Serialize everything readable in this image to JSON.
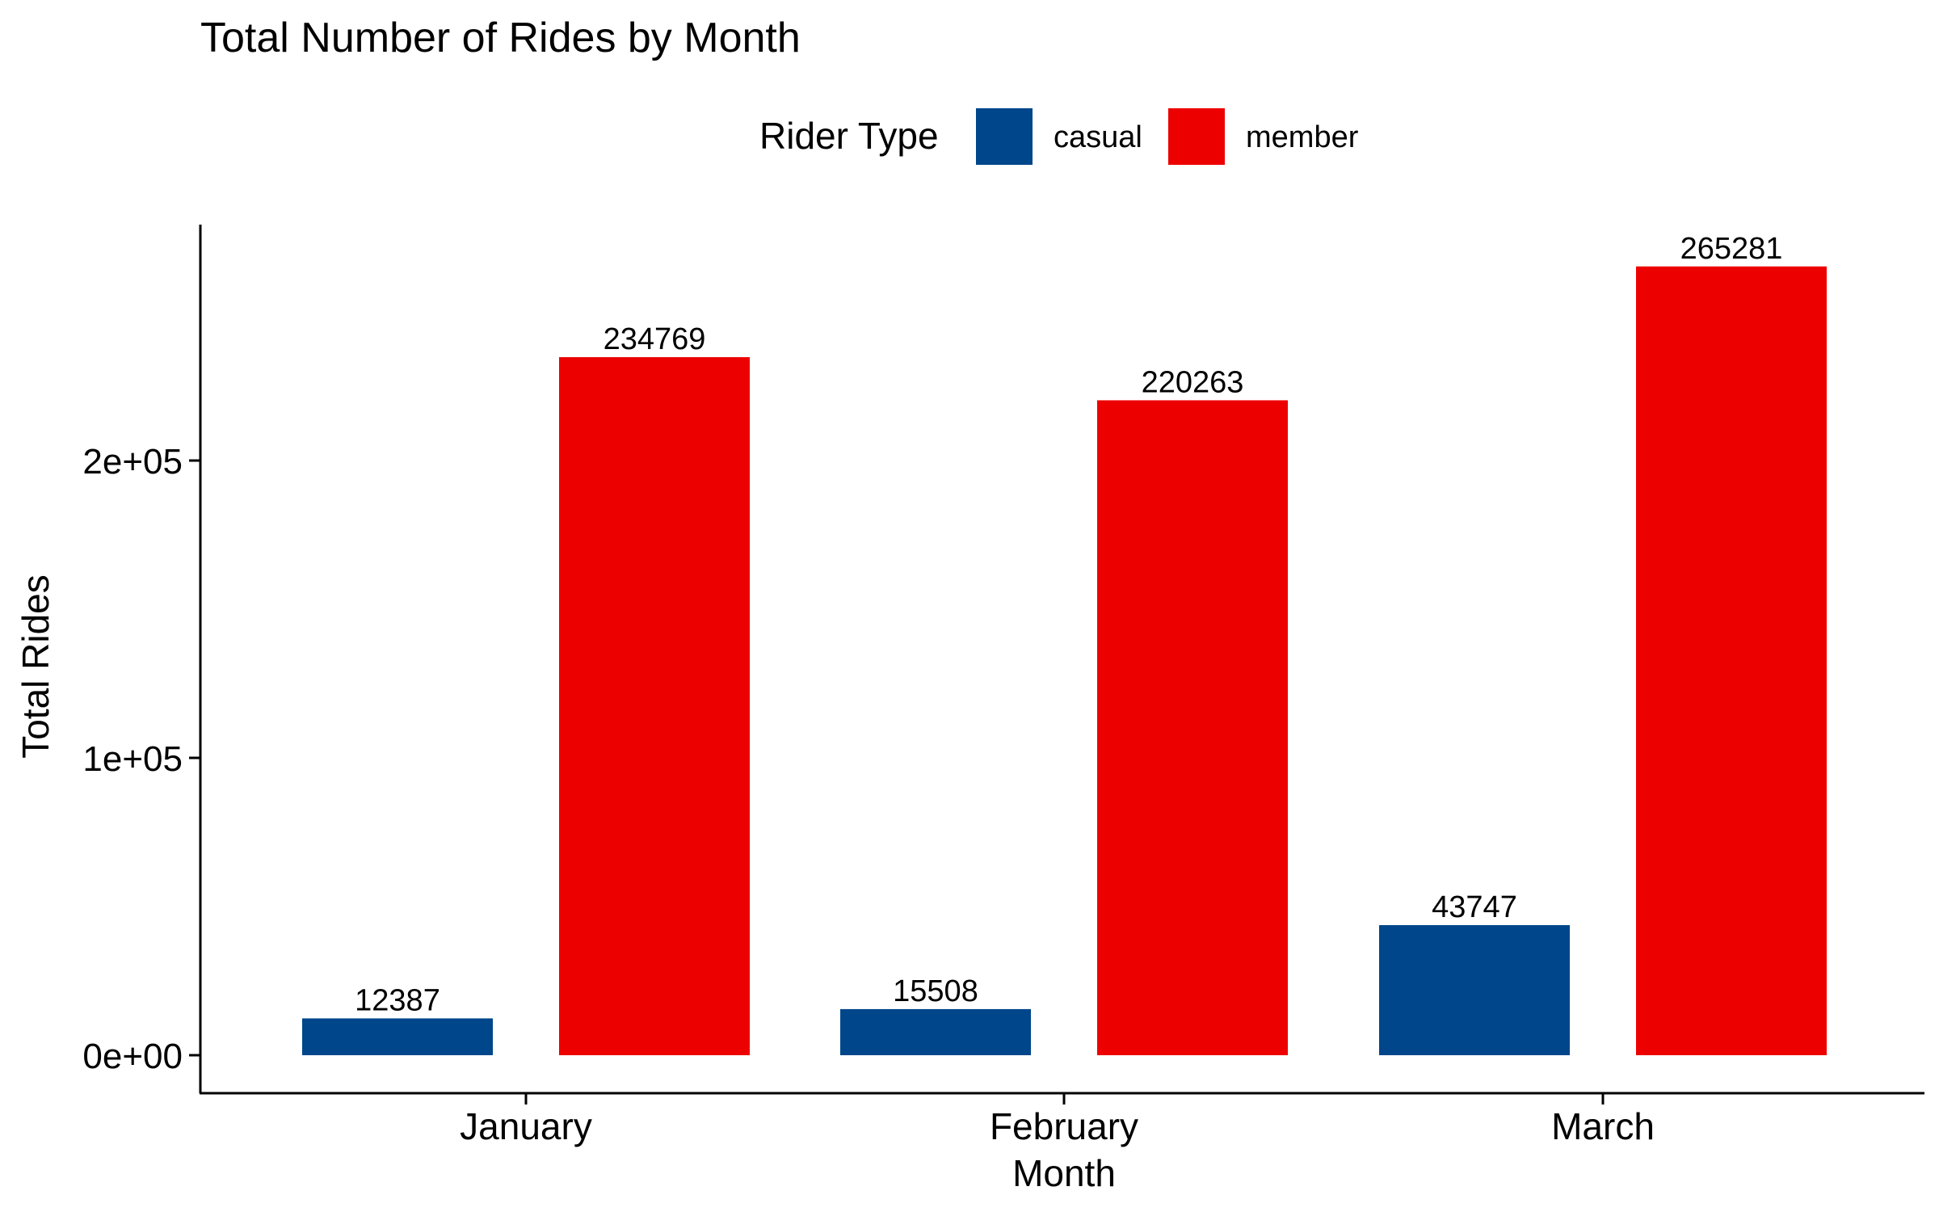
{
  "chart_data": {
    "type": "bar",
    "title": "Total Number of Rides by Month",
    "xlabel": "Month",
    "ylabel": "Total Rides",
    "categories": [
      "January",
      "February",
      "March"
    ],
    "series": [
      {
        "name": "casual",
        "color": "#00468B",
        "values": [
          12387,
          15508,
          43747
        ]
      },
      {
        "name": "member",
        "color": "#ED0000",
        "values": [
          234769,
          220263,
          265281
        ]
      }
    ],
    "data_labels": true,
    "ylim": [
      -12000,
      280000
    ],
    "yticks": [
      {
        "value": 0,
        "label": "0e+00"
      },
      {
        "value": 100000,
        "label": "1e+05"
      },
      {
        "value": 200000,
        "label": "2e+05"
      }
    ],
    "legend": {
      "title": "Rider Type",
      "position": "top",
      "direction": "horizontal"
    },
    "grid": false
  }
}
